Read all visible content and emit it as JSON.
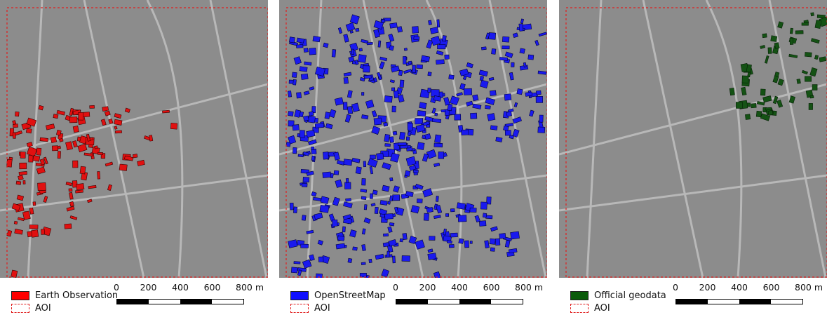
{
  "panels": [
    {
      "legend_label": "Earth Observation",
      "legend_color": "#ff0000",
      "aoi_label": "AOI",
      "footprint_color": "#e01010",
      "footprint_stroke": "#3a0000"
    },
    {
      "legend_label": "OpenStreetMap",
      "legend_color": "#1010ff",
      "aoi_label": "AOI",
      "footprint_color": "#1a1aee",
      "footprint_stroke": "#00003a"
    },
    {
      "legend_label": "Official geodata",
      "legend_color": "#0a5a0a",
      "aoi_label": "AOI",
      "footprint_color": "#145214",
      "footprint_stroke": "#062006"
    }
  ],
  "scalebar": {
    "ticks": [
      "0",
      "200",
      "400",
      "600",
      "800 m"
    ]
  },
  "aoi_color": "#e02020",
  "imagery_color": "#8c8c8c"
}
